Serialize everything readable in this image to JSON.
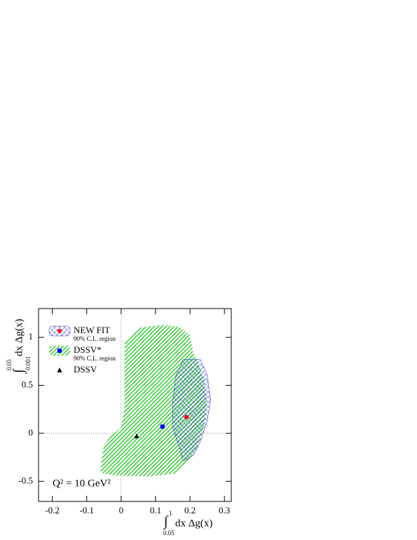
{
  "chart_data": {
    "type": "scatter",
    "x_label": {
      "text": "dx Δg(x)",
      "integral": "∫",
      "lower": "0.05",
      "upper": "1"
    },
    "y_label": {
      "text": "dx Δg(x)",
      "integral": "∫",
      "lower": "0.001",
      "upper": "0.05"
    },
    "annotation": "Q² = 10 GeV²",
    "xlim": [
      -0.24,
      0.32
    ],
    "ylim": [
      -0.71,
      1.3
    ],
    "xticks": [
      -0.2,
      -0.1,
      0,
      0.1,
      0.2,
      0.3
    ],
    "yticks": [
      -0.5,
      0,
      0.5,
      1
    ],
    "zero_lines": true,
    "legend": "upper left",
    "series": [
      {
        "name": "DSSV*",
        "sublabel": "90% C.L. region",
        "color": "#0000ff",
        "marker": "square",
        "region_color": "#33cc33",
        "region_x": [
          -0.06,
          -0.05,
          -0.03,
          0.0,
          0.01,
          0.01,
          0.01,
          0.05,
          0.12,
          0.17,
          0.2,
          0.21,
          0.22,
          0.24,
          0.25,
          0.24,
          0.22,
          0.19,
          0.16,
          0.08,
          -0.02,
          -0.06
        ],
        "region_y": [
          -0.37,
          -0.12,
          -0.03,
          0.06,
          0.28,
          0.72,
          0.95,
          1.1,
          1.13,
          1.11,
          1.02,
          0.83,
          0.77,
          0.57,
          0.31,
          0.06,
          -0.16,
          -0.31,
          -0.42,
          -0.45,
          -0.44,
          -0.41
        ],
        "x": [
          0.12
        ],
        "values": [
          0.07
        ]
      },
      {
        "name": "NEW FIT",
        "sublabel": "90% C.L. region",
        "color": "#ff0000",
        "marker": "circle",
        "region_color": "#2222cc",
        "region_x": [
          0.18,
          0.23,
          0.25,
          0.26,
          0.25,
          0.23,
          0.21,
          0.18,
          0.17,
          0.15,
          0.15,
          0.16
        ],
        "region_y": [
          0.77,
          0.77,
          0.61,
          0.35,
          0.13,
          -0.09,
          -0.23,
          -0.29,
          -0.16,
          0.06,
          0.35,
          0.61
        ],
        "x": [
          0.19
        ],
        "values": [
          0.17
        ]
      },
      {
        "name": "DSSV",
        "color": "#000000",
        "marker": "triangle",
        "x": [
          0.045
        ],
        "values": [
          -0.03
        ]
      }
    ]
  }
}
